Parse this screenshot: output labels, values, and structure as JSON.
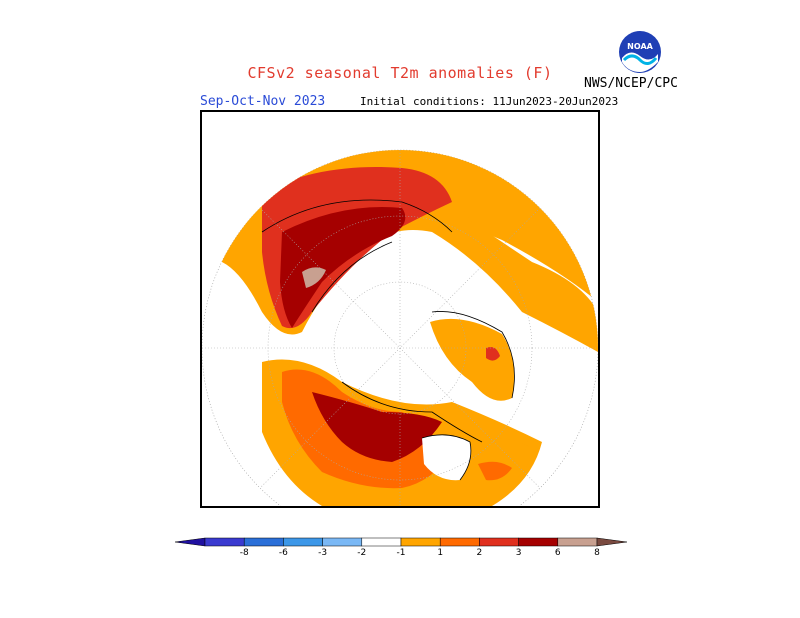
{
  "header": {
    "title": "CFSv2 seasonal T2m anomalies (F)",
    "season": "Sep-Oct-Nov 2023",
    "initial_conditions": "Initial conditions: 11Jun2023-20Jun2023",
    "agency": "NWS/NCEP/CPC",
    "logo_text": "NOAA"
  },
  "legend": {
    "labels": [
      "-8",
      "-6",
      "-3",
      "-2",
      "-1",
      "1",
      "2",
      "3",
      "6",
      "8"
    ],
    "colors": [
      "#2010a0",
      "#3a3ad0",
      "#2a6fd8",
      "#3c97e8",
      "#7ab8f5",
      "#ffffff",
      "#ffa500",
      "#ff6a00",
      "#e0301e",
      "#a50000",
      "#c8a090",
      "#7a4a40"
    ]
  },
  "map": {
    "projection": "north-polar-stereographic",
    "anomaly_colors": {
      "orange": "#ffa500",
      "dark_orange": "#ff6a00",
      "red": "#e0301e",
      "dark_red": "#a50000",
      "tan": "#c8a090"
    }
  }
}
